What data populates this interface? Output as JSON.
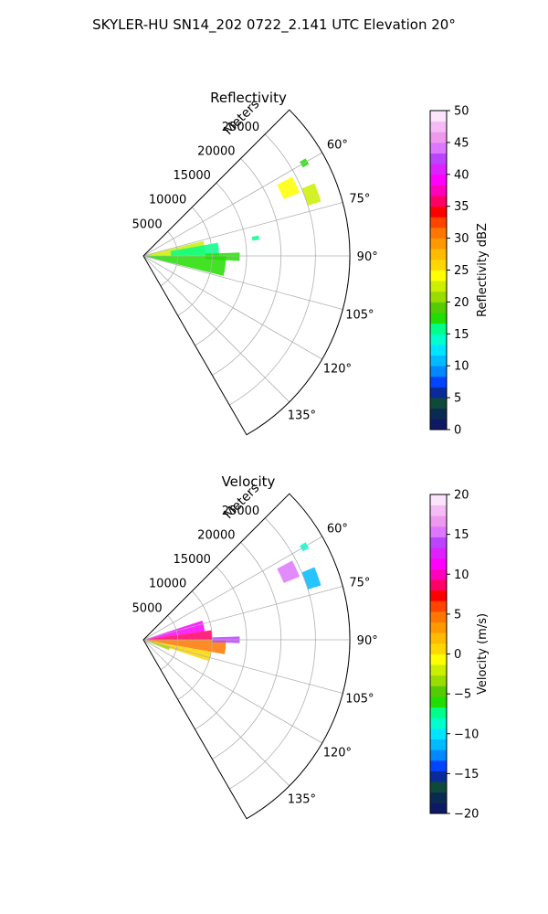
{
  "figure": {
    "title": "SKYLER-HU  SN14_202  0722_2.141 UTC Elevation 20°"
  },
  "chart_data": [
    {
      "type": "heatmap",
      "subtype": "polar-sector",
      "title": "Reflectivity",
      "radial_axis_label": "Meters",
      "radial_ticks": [
        5000,
        10000,
        15000,
        20000,
        25000
      ],
      "radial_tick_labels": [
        "5000",
        "10000",
        "15000",
        "20000",
        "25000"
      ],
      "radial_range": [
        0,
        30000
      ],
      "azimuth_range_deg": [
        45,
        150
      ],
      "azimuth_ticks_deg": [
        60,
        75,
        90,
        105,
        120,
        135
      ],
      "azimuth_tick_labels": [
        "60°",
        "75°",
        "90°",
        "105°",
        "120°",
        "135°"
      ],
      "grid": true,
      "colorbar": {
        "label": "Reflectivity dBZ",
        "range": [
          0,
          50
        ],
        "ticks": [
          0,
          5,
          10,
          15,
          20,
          25,
          30,
          35,
          40,
          45,
          50
        ],
        "tick_labels": [
          "0",
          "5",
          "10",
          "15",
          "20",
          "25",
          "30",
          "35",
          "40",
          "45",
          "50"
        ],
        "colors": [
          "#0d1a63",
          "#0b2a52",
          "#0d4a3a",
          "#0a2a9a",
          "#0044ff",
          "#0088ff",
          "#00bbff",
          "#00e5ff",
          "#00ffcc",
          "#00ff88",
          "#22dd00",
          "#55cc00",
          "#99dd00",
          "#ccee00",
          "#ffff00",
          "#ffd700",
          "#ffbb00",
          "#ff9900",
          "#ff7700",
          "#ff4400",
          "#ff0000",
          "#ff0066",
          "#ff00bb",
          "#ff00ff",
          "#dd22ff",
          "#bb44ff",
          "#dd77ff",
          "#ee99ee",
          "#f4bbf4",
          "#fde4fd"
        ]
      },
      "echo_regions": [
        {
          "az": [
            76,
            89
          ],
          "r": [
            200,
            9000
          ],
          "value": 22
        },
        {
          "az": [
            80,
            90
          ],
          "r": [
            4000,
            11000
          ],
          "value": 16
        },
        {
          "az": [
            90,
            104
          ],
          "r": [
            500,
            12000
          ],
          "value": 17
        },
        {
          "az": [
            88,
            93
          ],
          "r": [
            9000,
            14000
          ],
          "value": 18
        },
        {
          "az": [
            62,
            68
          ],
          "r": [
            22000,
            24500
          ],
          "value": 24
        },
        {
          "az": [
            67,
            73
          ],
          "r": [
            25000,
            27000
          ],
          "value": 22
        },
        {
          "az": [
            59,
            61
          ],
          "r": [
            26500,
            27500
          ],
          "value": 18
        },
        {
          "az": [
            80,
            82
          ],
          "r": [
            16000,
            17000
          ],
          "value": 15
        }
      ]
    },
    {
      "type": "heatmap",
      "subtype": "polar-sector",
      "title": "Velocity",
      "radial_axis_label": "Meters",
      "radial_ticks": [
        5000,
        10000,
        15000,
        20000,
        25000
      ],
      "radial_tick_labels": [
        "5000",
        "10000",
        "15000",
        "20000",
        "25000"
      ],
      "radial_range": [
        0,
        30000
      ],
      "azimuth_range_deg": [
        45,
        150
      ],
      "azimuth_ticks_deg": [
        60,
        75,
        90,
        105,
        120,
        135
      ],
      "azimuth_tick_labels": [
        "60°",
        "75°",
        "90°",
        "105°",
        "120°",
        "135°"
      ],
      "grid": true,
      "colorbar": {
        "label": "Velocity (m/s)",
        "range": [
          -20,
          20
        ],
        "ticks": [
          -20,
          -15,
          -10,
          -5,
          0,
          5,
          10,
          15,
          20
        ],
        "tick_labels": [
          "−20",
          "−15",
          "−10",
          "−5",
          "0",
          "5",
          "10",
          "15",
          "20"
        ],
        "colors": [
          "#0d1a63",
          "#0b2a52",
          "#0d4a3a",
          "#0a2a9a",
          "#0044ff",
          "#0088ff",
          "#00bbff",
          "#00e5ff",
          "#00ffcc",
          "#00ff88",
          "#22dd00",
          "#55cc00",
          "#99dd00",
          "#ccee00",
          "#ffff00",
          "#ffd700",
          "#ffbb00",
          "#ff9900",
          "#ff7700",
          "#ff4400",
          "#ff0000",
          "#ff0066",
          "#ff00bb",
          "#ff00ff",
          "#dd22ff",
          "#bb44ff",
          "#dd77ff",
          "#ee99ee",
          "#f4bbf4",
          "#fde4fd"
        ]
      },
      "echo_regions": [
        {
          "az": [
            72,
            82
          ],
          "r": [
            500,
            9000
          ],
          "value": 11
        },
        {
          "az": [
            82,
            90
          ],
          "r": [
            500,
            10000
          ],
          "value": 9
        },
        {
          "az": [
            90,
            100
          ],
          "r": [
            500,
            12000
          ],
          "value": 4
        },
        {
          "az": [
            100,
            108
          ],
          "r": [
            500,
            10000
          ],
          "value": 1
        },
        {
          "az": [
            105,
            112
          ],
          "r": [
            200,
            4000
          ],
          "value": -3
        },
        {
          "az": [
            88,
            92
          ],
          "r": [
            10000,
            14000
          ],
          "value": 14
        },
        {
          "az": [
            62,
            68
          ],
          "r": [
            22000,
            24500
          ],
          "value": 15
        },
        {
          "az": [
            67,
            73
          ],
          "r": [
            25000,
            27000
          ],
          "value": -11
        },
        {
          "az": [
            59,
            61
          ],
          "r": [
            26500,
            27500
          ],
          "value": -9
        }
      ]
    }
  ]
}
